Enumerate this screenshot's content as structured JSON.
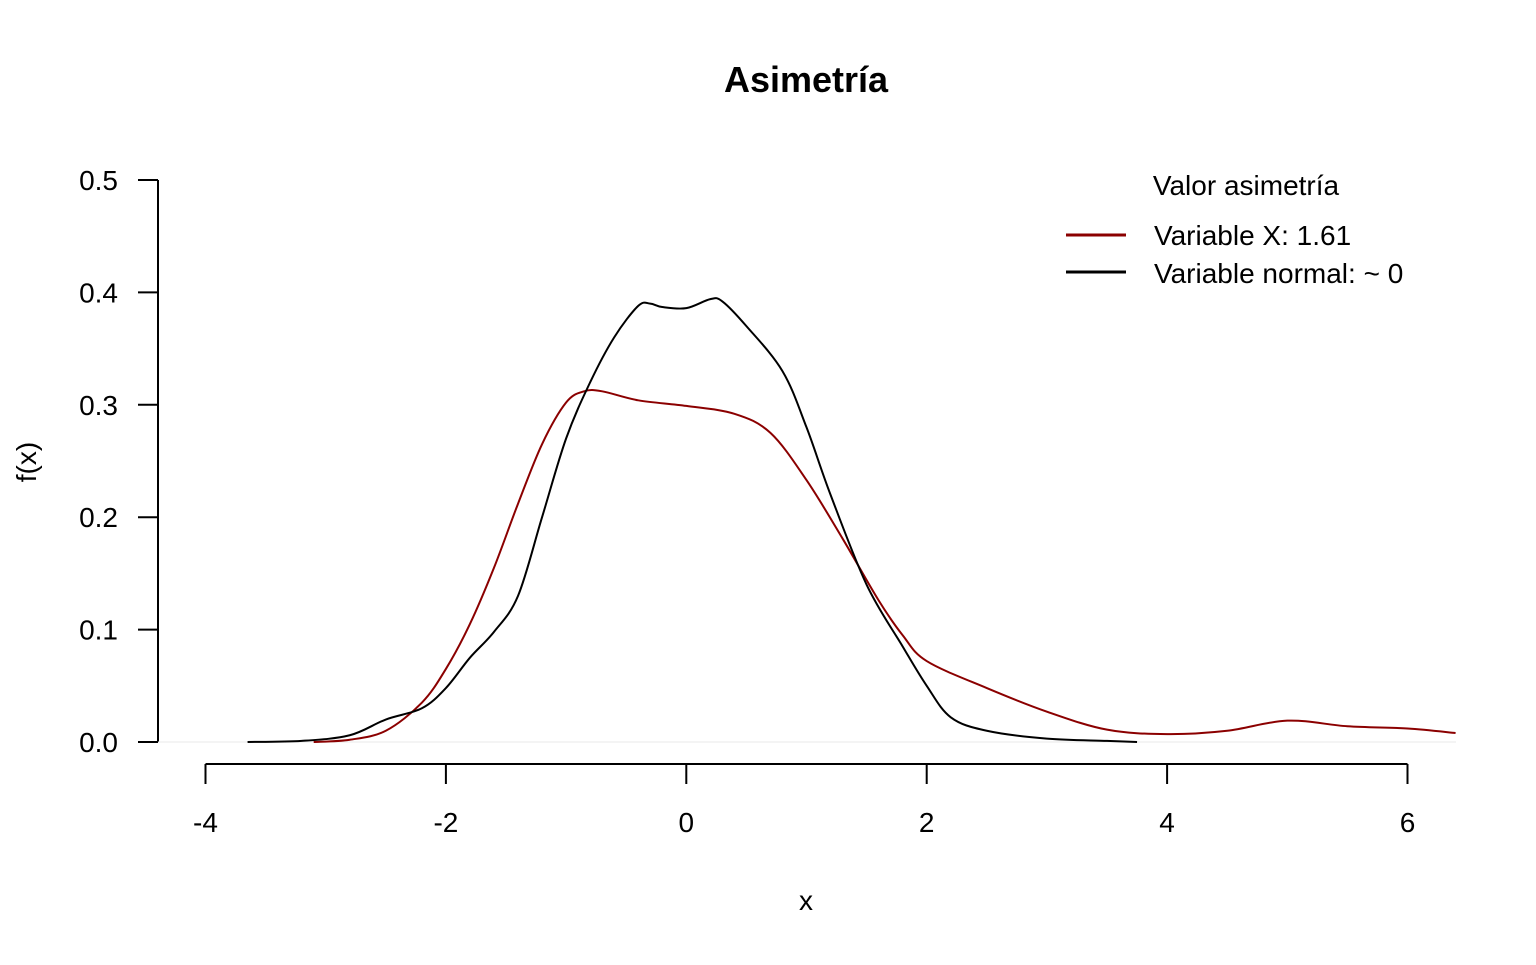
{
  "chart_data": {
    "type": "line",
    "title": "Asimetría",
    "xlabel": "x",
    "ylabel": "f(x)",
    "xlim": [
      -4,
      6.4
    ],
    "ylim": [
      0,
      0.5
    ],
    "x_ticks": [
      "-4",
      "-2",
      "0",
      "2",
      "4",
      "6"
    ],
    "y_ticks": [
      "0.0",
      "0.1",
      "0.2",
      "0.3",
      "0.4",
      "0.5"
    ],
    "grid": false,
    "legend": {
      "title": "Valor asimetría",
      "position": "top-right",
      "entries": [
        "Variable X: 1.61",
        "Variable normal: ~ 0"
      ]
    },
    "series": [
      {
        "name": "Variable X: 1.61",
        "color": "#8b0000",
        "x": [
          -3.1,
          -2.8,
          -2.5,
          -2.2,
          -2.0,
          -1.8,
          -1.6,
          -1.4,
          -1.2,
          -1.0,
          -0.85,
          -0.7,
          -0.4,
          0.0,
          0.4,
          0.7,
          1.0,
          1.3,
          1.6,
          1.8,
          2.0,
          2.5,
          3.0,
          3.5,
          4.0,
          4.5,
          5.0,
          5.5,
          6.0,
          6.4
        ],
        "y": [
          0.0,
          0.002,
          0.01,
          0.035,
          0.065,
          0.105,
          0.155,
          0.212,
          0.265,
          0.302,
          0.312,
          0.312,
          0.304,
          0.299,
          0.292,
          0.275,
          0.233,
          0.181,
          0.126,
          0.095,
          0.072,
          0.048,
          0.027,
          0.011,
          0.007,
          0.01,
          0.019,
          0.014,
          0.012,
          0.008
        ]
      },
      {
        "name": "Variable normal: ~ 0",
        "color": "#000000",
        "x": [
          -3.65,
          -3.2,
          -2.8,
          -2.5,
          -2.2,
          -2.0,
          -1.8,
          -1.6,
          -1.4,
          -1.2,
          -1.0,
          -0.8,
          -0.6,
          -0.4,
          -0.3,
          -0.2,
          0.0,
          0.2,
          0.3,
          0.5,
          0.8,
          1.0,
          1.2,
          1.5,
          1.8,
          2.0,
          2.2,
          2.5,
          3.0,
          3.5,
          3.75
        ],
        "y": [
          0.0,
          0.001,
          0.006,
          0.02,
          0.03,
          0.048,
          0.075,
          0.098,
          0.13,
          0.2,
          0.27,
          0.32,
          0.36,
          0.388,
          0.39,
          0.387,
          0.386,
          0.394,
          0.392,
          0.37,
          0.33,
          0.28,
          0.22,
          0.14,
          0.085,
          0.05,
          0.022,
          0.01,
          0.003,
          0.001,
          0.0
        ]
      }
    ]
  }
}
